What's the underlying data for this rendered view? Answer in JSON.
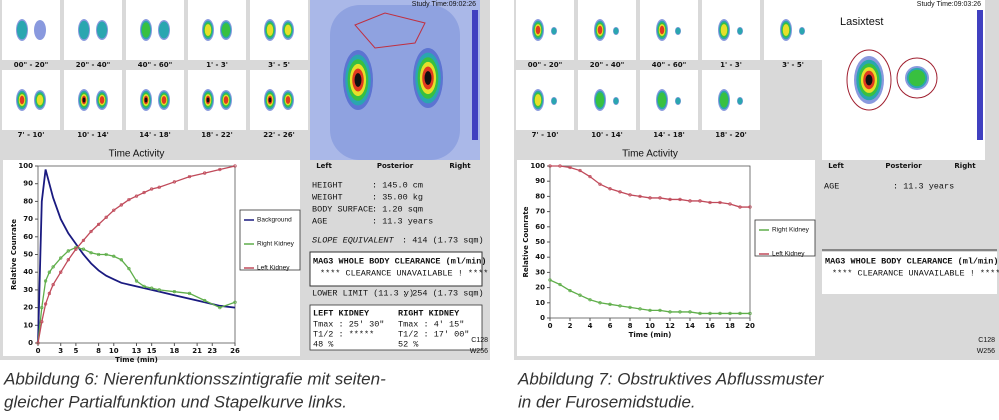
{
  "figures": [
    {
      "scan": {
        "study_time": "Study Time:09:02:26",
        "thumbnails": [
          "00\" - 20\"",
          "20\" - 40\"",
          "40\" - 60\"",
          "1' - 3'",
          "3' - 5'",
          "7' - 10'",
          "10' - 14'",
          "14' - 18'",
          "18' - 22'",
          "22' - 26'"
        ],
        "orientation": [
          "Left",
          "Posterior",
          "Right"
        ]
      },
      "chart_data": {
        "type": "line",
        "title": "Time Activity",
        "x_label": "Time (min)",
        "y_label": "Relative Counrate",
        "xlim": [
          0,
          26
        ],
        "ylim": [
          0,
          100
        ],
        "xticks": [
          0,
          3,
          5,
          8,
          10,
          13,
          15,
          18,
          21,
          23,
          26
        ],
        "yticks": [
          0,
          10,
          20,
          30,
          40,
          50,
          60,
          70,
          80,
          90,
          100
        ],
        "x": [
          0,
          0.5,
          1,
          1.5,
          2,
          3,
          4,
          5,
          6,
          7,
          8,
          9,
          10,
          11,
          12,
          13,
          14,
          15,
          16,
          18,
          20,
          22,
          24,
          26
        ],
        "series": [
          {
            "name": "Background",
            "color": "#1a1a80",
            "values": [
              0,
              80,
              98,
              90,
              82,
              70,
              62,
              56,
              50,
              45,
              41,
              38,
              36,
              34,
              33,
              32,
              31,
              30,
              29,
              27,
              25,
              23,
              21,
              20
            ]
          },
          {
            "name": "Right Kidney",
            "color": "#5fae4a",
            "values": [
              0,
              20,
              35,
              40,
              43,
              48,
              52,
              54,
              53,
              51,
              50,
              50,
              49,
              47,
              42,
              35,
              32,
              31,
              30,
              29,
              28,
              24,
              20,
              23
            ]
          },
          {
            "name": "Left Kidney",
            "color": "#c04a5a",
            "values": [
              0,
              12,
              22,
              28,
              33,
              40,
              47,
              53,
              58,
              63,
              67,
              71,
              75,
              78,
              81,
              83,
              85,
              87,
              88,
              91,
              94,
              96,
              98,
              100
            ]
          }
        ]
      },
      "info": [
        {
          "label": "HEIGHT",
          "value": ": 145.0 cm"
        },
        {
          "label": "WEIGHT",
          "value": ": 35.00 kg"
        },
        {
          "label": "BODY SURFACE",
          "value": ": 1.20 sqm"
        },
        {
          "label": "AGE",
          "value": ": 11.3 years"
        }
      ],
      "slope": {
        "label": "SLOPE EQUIVALENT",
        "value": ": 414 (1.73 sqm)"
      },
      "clearance": {
        "title": "MAG3 WHOLE BODY CLEARANCE (ml/min)",
        "message": "**** CLEARANCE UNAVAILABLE ! ****"
      },
      "lower_limit": {
        "label": "LOWER LIMIT (11.3 y)",
        "value": ": 254 (1.73 sqm)"
      },
      "kidney_table": {
        "headers": [
          "LEFT KIDNEY",
          "RIGHT KIDNEY"
        ],
        "rows": [
          [
            "Tmax : 25' 30\"",
            "Tmax : 4' 15\""
          ],
          [
            "T1/2 : *****",
            "T1/2 : 17' 00\""
          ],
          [
            "48 %",
            "52 %"
          ]
        ]
      },
      "corner": [
        "C128",
        "W256"
      ],
      "caption": [
        "Abbildung 6: Nierenfunktionsszintigrafie mit seiten-",
        "gleicher Partialfunktion und Stapelkurve links."
      ]
    },
    {
      "scan": {
        "study_time": "Study Time:09:03:26",
        "overlay_title": "Lasixtest",
        "thumbnails": [
          "00\" - 20\"",
          "20\" - 40\"",
          "40\" - 60\"",
          "1' - 3'",
          "3' - 5'",
          "7' - 10'",
          "10' - 14'",
          "14' - 18'",
          "18' - 20'"
        ],
        "orientation": [
          "Left",
          "Posterior",
          "Right"
        ]
      },
      "chart_data": {
        "type": "line",
        "title": "Time Activity",
        "x_label": "Time (min)",
        "y_label": "Relative Counrate",
        "xlim": [
          0,
          20
        ],
        "ylim": [
          0,
          100
        ],
        "xticks": [
          0,
          2,
          4,
          6,
          8,
          10,
          12,
          14,
          16,
          18,
          20
        ],
        "yticks": [
          0,
          10,
          20,
          30,
          40,
          50,
          60,
          70,
          80,
          90,
          100
        ],
        "x": [
          0,
          1,
          2,
          3,
          4,
          5,
          6,
          7,
          8,
          9,
          10,
          11,
          12,
          13,
          14,
          15,
          16,
          17,
          18,
          19,
          20
        ],
        "series": [
          {
            "name": "Right Kidney",
            "color": "#5fae4a",
            "values": [
              25,
              22,
              18,
              15,
              12,
              10,
              9,
              8,
              7,
              6,
              5,
              5,
              4,
              4,
              4,
              3,
              3,
              3,
              3,
              3,
              3
            ]
          },
          {
            "name": "Left Kidney",
            "color": "#c04a5a",
            "values": [
              100,
              100,
              99,
              97,
              93,
              88,
              85,
              83,
              81,
              80,
              79,
              79,
              78,
              78,
              77,
              77,
              76,
              76,
              75,
              73,
              73
            ]
          }
        ]
      },
      "info": [
        {
          "label": "AGE",
          "value": ": 11.3 years"
        }
      ],
      "clearance": {
        "title": "MAG3 WHOLE BODY CLEARANCE (ml/min)",
        "message": "**** CLEARANCE UNAVAILABLE ! ****"
      },
      "corner": [
        "C128",
        "W256"
      ],
      "caption": [
        "Abbildung 7: Obstruktives Abflussmuster",
        "in der Furosemidstudie."
      ]
    }
  ]
}
